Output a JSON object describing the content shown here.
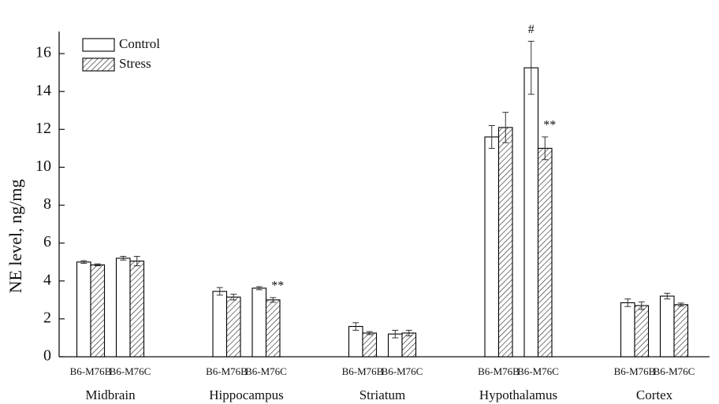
{
  "chart_data": {
    "type": "bar",
    "ylabel": "NE level, ng/mg",
    "categories": [
      "B6-M76B",
      "B6-M76C",
      "B6-M76B",
      "B6-M76C",
      "B6-M76B",
      "B6-M76C",
      "B6-M76B",
      "B6-M76C",
      "B6-M76B",
      "B6-M76C"
    ],
    "groups": [
      "Midbrain",
      "Hippocampus",
      "Striatum",
      "Hypothalamus",
      "Cortex"
    ],
    "series": [
      {
        "name": "Control",
        "color": "#000000",
        "pattern": "none",
        "values": [
          5.0,
          5.2,
          3.45,
          3.62,
          1.6,
          1.2,
          11.6,
          15.25,
          2.85,
          3.2
        ],
        "errors": [
          0.07,
          0.1,
          0.2,
          0.08,
          0.2,
          0.2,
          0.6,
          1.4,
          0.2,
          0.15
        ],
        "annotations": [
          null,
          null,
          null,
          null,
          null,
          null,
          null,
          "#",
          null,
          null
        ]
      },
      {
        "name": "Stress",
        "color": "#000000",
        "pattern": "hatch",
        "values": [
          4.85,
          5.05,
          3.15,
          3.0,
          1.25,
          1.25,
          12.1,
          11.0,
          2.7,
          2.75
        ],
        "errors": [
          0.05,
          0.25,
          0.15,
          0.12,
          0.08,
          0.15,
          0.8,
          0.6,
          0.2,
          0.08
        ],
        "annotations": [
          null,
          null,
          null,
          "**",
          null,
          null,
          null,
          "**",
          null,
          null
        ]
      }
    ],
    "ylim": [
      0,
      17
    ],
    "yticks": [
      0,
      2,
      4,
      6,
      8,
      10,
      12,
      14,
      16
    ],
    "legend": "upper left"
  }
}
